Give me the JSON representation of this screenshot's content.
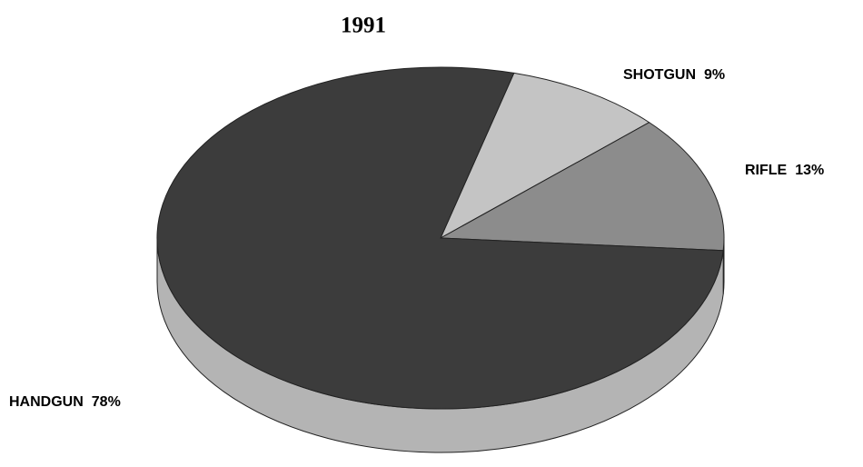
{
  "chart_data": {
    "type": "pie",
    "title": "1991",
    "categories": [
      "SHOTGUN",
      "RIFLE",
      "HANDGUN"
    ],
    "values": [
      9,
      13,
      78
    ],
    "value_labels": [
      "9%",
      "13%",
      "78%"
    ],
    "colors": [
      "#c4c4c4",
      "#8c8c8c",
      "#3c3c3c"
    ]
  }
}
